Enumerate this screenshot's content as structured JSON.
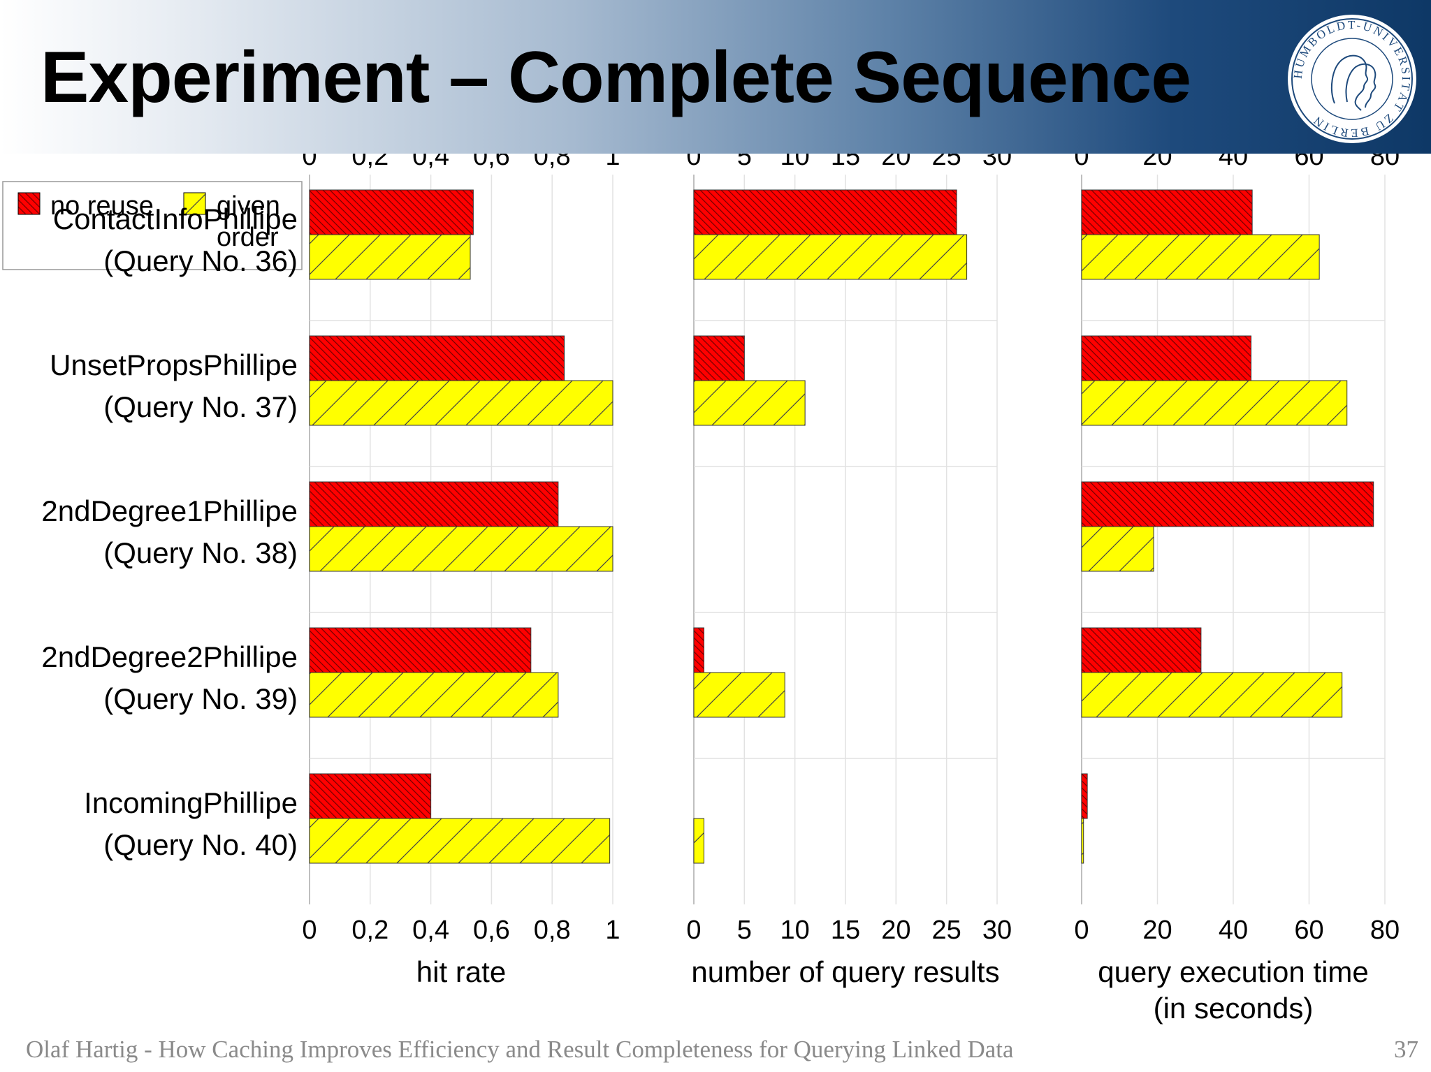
{
  "slide": {
    "title": "Experiment – Complete Sequence",
    "footer": "Olaf Hartig - How Caching Improves Efficiency and Result Completeness for Querying Linked Data",
    "page_number": "37",
    "logo_text": "HUMBOLDT-UNIVERSITÄT ZU BERLIN"
  },
  "colors": {
    "no_reuse": "#ff0000",
    "given_order": "#ffff00",
    "grid": "#d9d9d9",
    "axis": "#bfbfbf",
    "header_dark": "#0e3866"
  },
  "legend": {
    "placement": "top-left",
    "items": [
      {
        "label": "no reuse",
        "color": "#ff0000"
      },
      {
        "label_lines": [
          "given",
          "order"
        ],
        "color": "#ffff00"
      }
    ]
  },
  "chart_data": {
    "type": "bar",
    "orientation": "horizontal",
    "categories": [
      [
        "ContactInfoPhillipe",
        "(Query No. 36)"
      ],
      [
        "UnsetPropsPhillipe",
        "(Query No. 37)"
      ],
      [
        "2ndDegree1Phillipe",
        "(Query No. 38)"
      ],
      [
        "2ndDegree2Phillipe",
        "(Query No. 39)"
      ],
      [
        "IncomingPhillipe",
        "(Query No. 40)"
      ]
    ],
    "series_names": [
      "no reuse",
      "given order"
    ],
    "panels": [
      {
        "xlabel": [
          "hit rate"
        ],
        "xlim": [
          0,
          1
        ],
        "ticks": [
          0,
          0.2,
          0.4,
          0.6,
          0.8,
          1
        ],
        "tick_labels": [
          "0",
          "0,2",
          "0,4",
          "0,6",
          "0,8",
          "1"
        ],
        "series": [
          {
            "name": "no reuse",
            "values": [
              0.54,
              0.84,
              0.82,
              0.73,
              0.4
            ]
          },
          {
            "name": "given order",
            "values": [
              0.53,
              1.0,
              1.0,
              0.82,
              0.99
            ]
          }
        ]
      },
      {
        "xlabel": [
          "number of query results"
        ],
        "xlim": [
          0,
          30
        ],
        "ticks": [
          0,
          5,
          10,
          15,
          20,
          25,
          30
        ],
        "tick_labels": [
          "0",
          "5",
          "10",
          "15",
          "20",
          "25",
          "30"
        ],
        "series": [
          {
            "name": "no reuse",
            "values": [
              26,
              5,
              0,
              1,
              0
            ]
          },
          {
            "name": "given order",
            "values": [
              27,
              11,
              0,
              9,
              1
            ]
          }
        ]
      },
      {
        "xlabel": [
          "query execution time",
          "(in seconds)"
        ],
        "xlim": [
          0,
          80
        ],
        "ticks": [
          0,
          20,
          40,
          60,
          80
        ],
        "tick_labels": [
          "0",
          "20",
          "40",
          "60",
          "80"
        ],
        "series": [
          {
            "name": "no reuse",
            "values": [
              45,
              44.7,
              77,
              31.5,
              1.5
            ]
          },
          {
            "name": "given order",
            "values": [
              62.7,
              70,
              19,
              68.7,
              0.5
            ]
          }
        ]
      }
    ],
    "grid": true
  }
}
